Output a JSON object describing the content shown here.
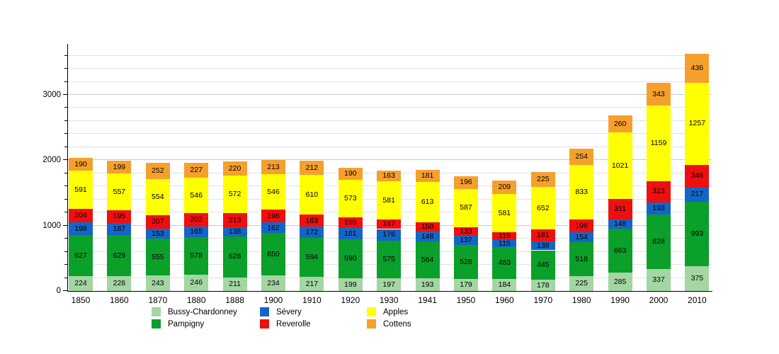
{
  "chart_data": {
    "type": "bar",
    "stacked": true,
    "categories": [
      "1850",
      "1860",
      "1870",
      "1880",
      "1888",
      "1900",
      "1910",
      "1920",
      "1930",
      "1941",
      "1950",
      "1960",
      "1970",
      "1980",
      "1990",
      "2000",
      "2010"
    ],
    "series": [
      {
        "name": "Bussy-Chardonney",
        "color": "#a3d6a3",
        "values": [
          224,
          228,
          243,
          246,
          211,
          234,
          217,
          199,
          197,
          193,
          179,
          184,
          178,
          225,
          285,
          337,
          375
        ]
      },
      {
        "name": "Pampigny",
        "color": "#0aa02a",
        "values": [
          627,
          629,
          555,
          578,
          628,
          650,
          594,
          590,
          575,
          564,
          528,
          483,
          445,
          518,
          663,
          828,
          993
        ]
      },
      {
        "name": "Sévery",
        "color": "#1565c6",
        "values": [
          198,
          187,
          153,
          165,
          138,
          162,
          172,
          181,
          176,
          148,
          137,
          115,
          138,
          154,
          148,
          193,
          217
        ]
      },
      {
        "name": "Reverolle",
        "color": "#ee0f0f",
        "values": [
          204,
          195,
          207,
          202,
          213,
          198,
          183,
          155,
          147,
          150,
          133,
          119,
          181,
          196,
          311,
          323,
          346
        ]
      },
      {
        "name": "Apples",
        "color": "#ffff00",
        "values": [
          591,
          557,
          554,
          546,
          572,
          546,
          610,
          573,
          581,
          613,
          587,
          581,
          652,
          833,
          1021,
          1159,
          1257
        ]
      },
      {
        "name": "Cottens",
        "color": "#f5a02d",
        "values": [
          190,
          199,
          252,
          227,
          220,
          213,
          212,
          190,
          163,
          181,
          196,
          209,
          225,
          254,
          260,
          343,
          436
        ]
      }
    ],
    "ylim": [
      0,
      3780
    ],
    "yticks": [
      0,
      1000,
      2000,
      3000
    ],
    "minor_tick_step": 200,
    "grid": true,
    "legend_position": "bottom",
    "axis_color": "#000000",
    "value_label_color": "#000000"
  }
}
